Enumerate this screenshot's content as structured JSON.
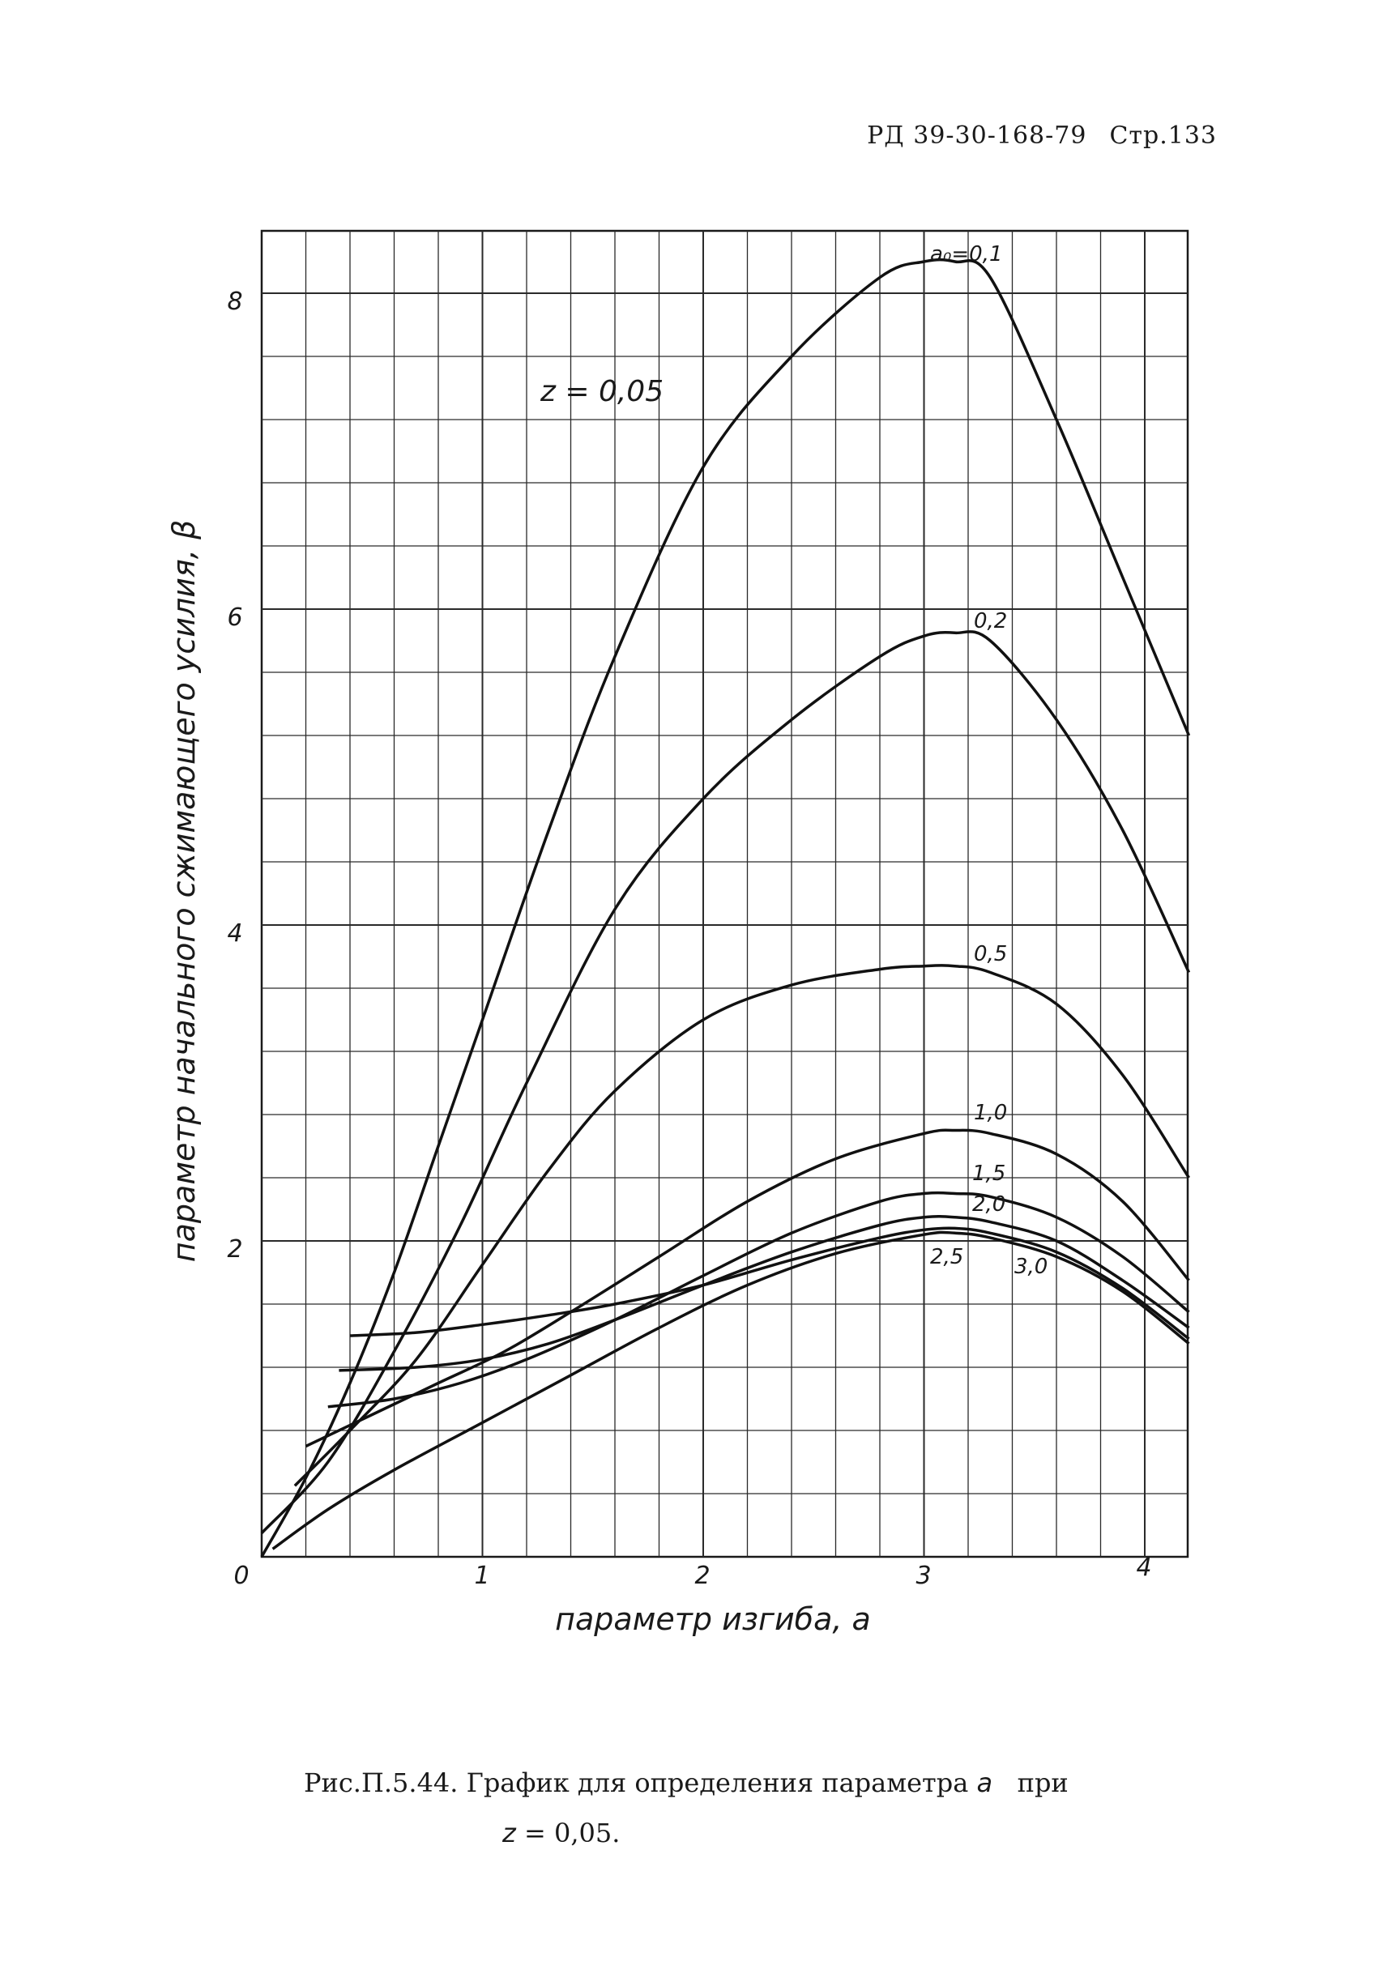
{
  "header": {
    "doc": "РД 39-30-168-79",
    "page": "Стр.133"
  },
  "caption": {
    "line1_text": "Рис.П.5.44. График для определения параметра",
    "line1_var": "a",
    "line1_end": "при",
    "line2_var": "z",
    "line2_text": "= 0,05."
  },
  "chart_data": {
    "type": "line",
    "title": "",
    "annotation": "z = 0,05",
    "xlabel": "параметр изгиба, a",
    "ylabel": "параметр начального сжимающего усилия, β",
    "xlim": [
      0,
      4.2
    ],
    "ylim": [
      0,
      8.4
    ],
    "xticks": [
      "0",
      "1",
      "2",
      "3",
      "4"
    ],
    "yticks": [
      "2",
      "4",
      "6",
      "8"
    ],
    "grid": true,
    "series": [
      {
        "name": "a₀=0,1",
        "label": "a₀=0,1",
        "x": [
          0,
          0.2,
          0.4,
          0.6,
          0.8,
          1.0,
          1.3,
          1.6,
          2.0,
          2.4,
          2.8,
          3.0,
          3.14,
          3.3,
          3.6,
          3.9,
          4.2
        ],
        "y": [
          0,
          0.5,
          1.1,
          1.8,
          2.6,
          3.4,
          4.6,
          5.7,
          6.9,
          7.6,
          8.1,
          8.2,
          8.2,
          8.1,
          7.2,
          6.2,
          5.2
        ]
      },
      {
        "name": "0,2",
        "label": "0,2",
        "x": [
          0,
          0.3,
          0.6,
          0.9,
          1.2,
          1.6,
          2.0,
          2.4,
          2.8,
          3.0,
          3.14,
          3.3,
          3.6,
          3.9,
          4.2
        ],
        "y": [
          0.15,
          0.6,
          1.3,
          2.1,
          3.0,
          4.1,
          4.8,
          5.3,
          5.7,
          5.83,
          5.85,
          5.8,
          5.3,
          4.6,
          3.7
        ]
      },
      {
        "name": "0,5",
        "label": "0,5",
        "x": [
          0.15,
          0.4,
          0.7,
          1.0,
          1.3,
          1.6,
          2.0,
          2.4,
          2.8,
          3.0,
          3.14,
          3.3,
          3.6,
          3.9,
          4.2
        ],
        "y": [
          0.45,
          0.8,
          1.25,
          1.85,
          2.45,
          2.95,
          3.4,
          3.62,
          3.72,
          3.74,
          3.74,
          3.7,
          3.5,
          3.05,
          2.4
        ]
      },
      {
        "name": "1,0",
        "label": "1,0",
        "x": [
          0.2,
          0.5,
          0.8,
          1.1,
          1.4,
          1.8,
          2.2,
          2.6,
          3.0,
          3.14,
          3.3,
          3.6,
          3.9,
          4.2
        ],
        "y": [
          0.7,
          0.9,
          1.1,
          1.3,
          1.55,
          1.9,
          2.25,
          2.52,
          2.68,
          2.7,
          2.68,
          2.55,
          2.25,
          1.75
        ]
      },
      {
        "name": "1,5",
        "label": "1,5",
        "x": [
          0.3,
          0.6,
          0.9,
          1.2,
          1.6,
          2.0,
          2.4,
          2.8,
          3.0,
          3.14,
          3.3,
          3.6,
          3.9,
          4.2
        ],
        "y": [
          0.95,
          1.0,
          1.1,
          1.25,
          1.5,
          1.78,
          2.05,
          2.25,
          2.3,
          2.3,
          2.28,
          2.15,
          1.9,
          1.55
        ]
      },
      {
        "name": "2,0",
        "label": "2,0",
        "x": [
          0.35,
          0.7,
          1.0,
          1.3,
          1.6,
          2.0,
          2.4,
          2.8,
          3.0,
          3.14,
          3.3,
          3.6,
          3.9,
          4.2
        ],
        "y": [
          1.18,
          1.2,
          1.25,
          1.35,
          1.5,
          1.72,
          1.93,
          2.1,
          2.15,
          2.15,
          2.12,
          2.0,
          1.75,
          1.45
        ]
      },
      {
        "name": "2,5",
        "label": "2,5",
        "x": [
          0.4,
          0.7,
          1.0,
          1.3,
          1.6,
          2.0,
          2.4,
          2.8,
          3.0,
          3.14,
          3.3,
          3.6,
          3.9,
          4.2
        ],
        "y": [
          1.4,
          1.42,
          1.47,
          1.53,
          1.6,
          1.72,
          1.88,
          2.02,
          2.07,
          2.08,
          2.05,
          1.93,
          1.7,
          1.38
        ]
      },
      {
        "name": "3,0",
        "label": "3,0",
        "x": [
          0.05,
          0.3,
          0.6,
          1.0,
          1.4,
          1.8,
          2.2,
          2.6,
          3.0,
          3.14,
          3.3,
          3.6,
          3.9,
          4.2
        ],
        "y": [
          0.05,
          0.3,
          0.55,
          0.85,
          1.15,
          1.45,
          1.72,
          1.92,
          2.04,
          2.05,
          2.02,
          1.9,
          1.68,
          1.35
        ]
      }
    ]
  }
}
